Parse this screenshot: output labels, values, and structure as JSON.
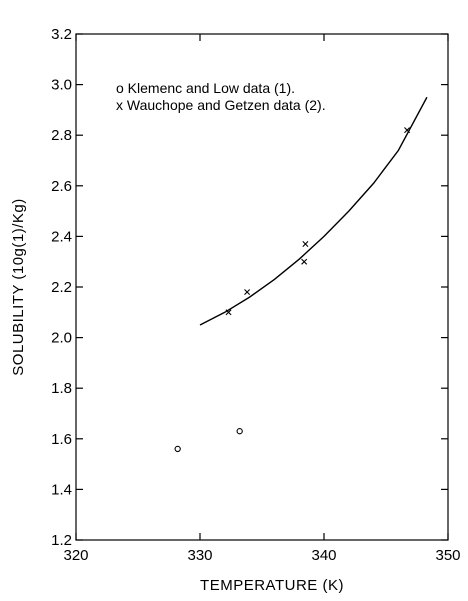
{
  "chart_data": {
    "type": "scatter",
    "title": "",
    "xlabel": "TEMPERATURE (K)",
    "ylabel": "SOLUBILITY (10g(1)/Kg)",
    "xlim": [
      320,
      350
    ],
    "ylim": [
      1.2,
      3.2
    ],
    "xticks": [
      320,
      330,
      340,
      350
    ],
    "yticks": [
      1.2,
      1.4,
      1.6,
      1.8,
      2.0,
      2.2,
      2.4,
      2.6,
      2.8,
      3.0,
      3.2
    ],
    "x_tick_labels": [
      "320",
      "330",
      "340",
      "350"
    ],
    "y_tick_labels": [
      "1.2",
      "1.4",
      "1.6",
      "1.8",
      "2.0",
      "2.2",
      "2.4",
      "2.6",
      "2.8",
      "3.0",
      "3.2"
    ],
    "grid": false,
    "legend": [
      {
        "marker": "o",
        "label": "o Klemenc and Low data (1)."
      },
      {
        "marker": "x",
        "label": "x Wauchope and Getzen data (2)."
      }
    ],
    "series": [
      {
        "name": "Klemenc and Low data (1)",
        "marker": "o",
        "points": [
          {
            "x": 328.2,
            "y": 1.56
          },
          {
            "x": 333.2,
            "y": 1.63
          }
        ]
      },
      {
        "name": "Wauchope and Getzen data (2)",
        "marker": "x",
        "points": [
          {
            "x": 332.3,
            "y": 2.1
          },
          {
            "x": 333.8,
            "y": 2.18
          },
          {
            "x": 338.4,
            "y": 2.3
          },
          {
            "x": 338.5,
            "y": 2.37
          },
          {
            "x": 346.7,
            "y": 2.82
          }
        ]
      },
      {
        "marker": "line",
        "points": [
          {
            "x": 330.0,
            "y": 2.05
          },
          {
            "x": 332.0,
            "y": 2.1
          },
          {
            "x": 334.0,
            "y": 2.16
          },
          {
            "x": 336.0,
            "y": 2.23
          },
          {
            "x": 338.0,
            "y": 2.31
          },
          {
            "x": 340.0,
            "y": 2.4
          },
          {
            "x": 342.0,
            "y": 2.5
          },
          {
            "x": 344.0,
            "y": 2.61
          },
          {
            "x": 346.0,
            "y": 2.74
          },
          {
            "x": 348.3,
            "y": 2.95
          }
        ]
      }
    ]
  }
}
